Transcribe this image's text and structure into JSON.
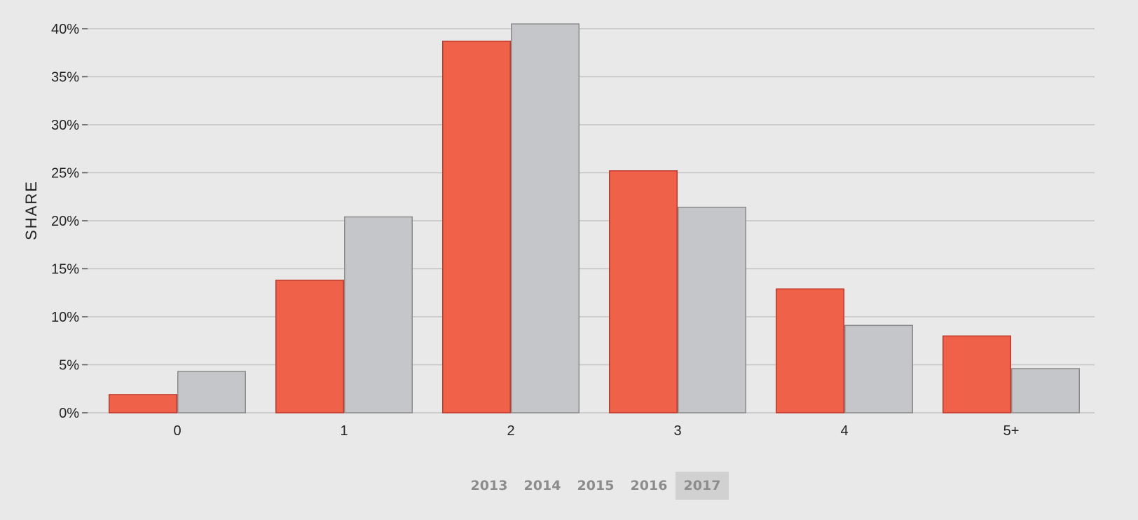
{
  "chart_data": {
    "type": "bar",
    "title": "",
    "xlabel": "",
    "ylabel": "SHARE",
    "categories": [
      "0",
      "1",
      "2",
      "3",
      "4",
      "5+"
    ],
    "series": [
      {
        "color": "#ef6149",
        "stroke": "#c0392b",
        "values": [
          1.9,
          13.8,
          38.7,
          25.2,
          12.9,
          8.0
        ]
      },
      {
        "color": "#c5c6ca",
        "stroke": "#8a8a8a",
        "values": [
          4.3,
          20.4,
          40.5,
          21.4,
          9.1,
          4.6
        ]
      }
    ],
    "ylim": [
      0,
      40
    ],
    "yticks": [
      0,
      5,
      10,
      15,
      20,
      25,
      30,
      35,
      40
    ],
    "ytick_format": "%",
    "grid": true
  },
  "year_tabs": {
    "items": [
      "2013",
      "2014",
      "2015",
      "2016",
      "2017"
    ],
    "active": "2017"
  }
}
